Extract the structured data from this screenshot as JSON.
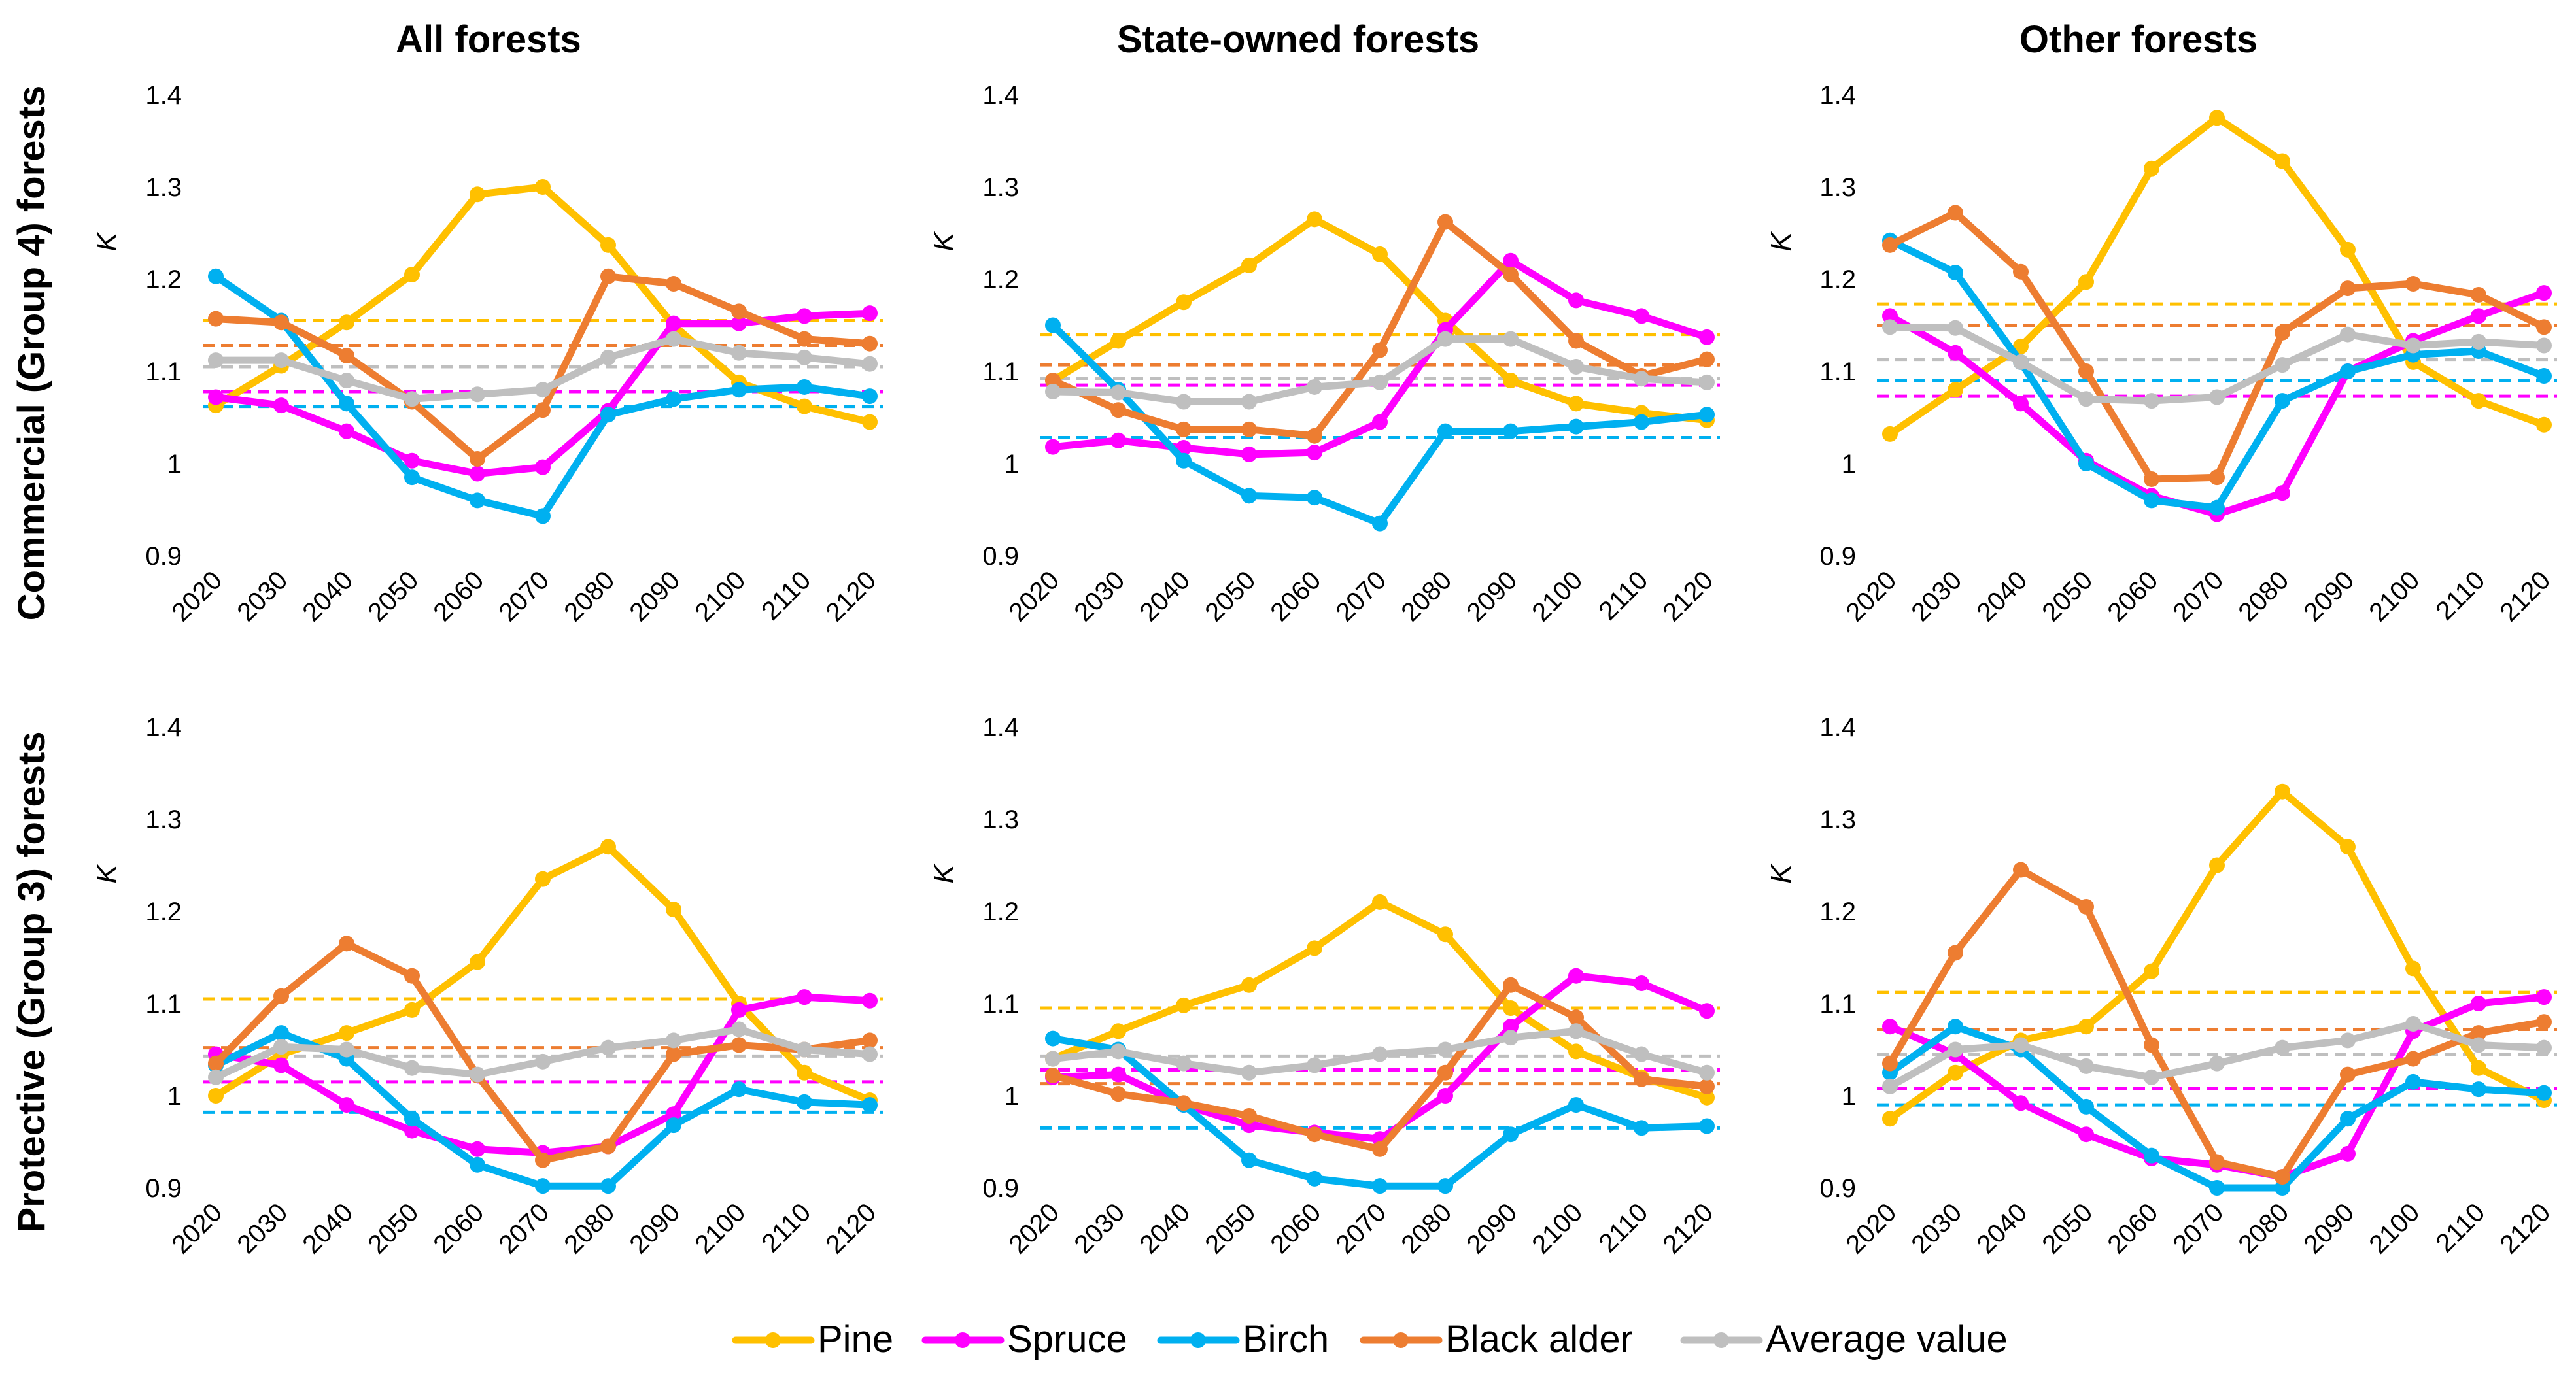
{
  "colors": {
    "Pine": "#FFC000",
    "Spruce": "#FF00FF",
    "Birch": "#00B0F0",
    "Black alder": "#ED7D31",
    "Average value": "#BFBFBF"
  },
  "column_titles": [
    "All forests",
    "State-owned forests",
    "Other forests"
  ],
  "row_labels": [
    "Commercial (Group 4) forests",
    "Protective (Group 3) forests"
  ],
  "legend": [
    "Pine",
    "Spruce",
    "Birch",
    "Black alder",
    "Average value"
  ],
  "chart_data": [
    {
      "type": "line",
      "row": 0,
      "col": 0,
      "title": "All forests",
      "ylabel": "K",
      "ylim": [
        0.9,
        1.4
      ],
      "yticks": [
        "0.9",
        "1",
        "1.1",
        "1.2",
        "1.3",
        "1.4"
      ],
      "x": [
        "2020",
        "2030",
        "2040",
        "2050",
        "2060",
        "2070",
        "2080",
        "2090",
        "2100",
        "2110",
        "2120"
      ],
      "series": [
        {
          "name": "Pine",
          "values": [
            1.063,
            1.106,
            1.153,
            1.205,
            1.292,
            1.3,
            1.237,
            1.15,
            1.088,
            1.062,
            1.045
          ],
          "mean": 1.155
        },
        {
          "name": "Spruce",
          "values": [
            1.072,
            1.063,
            1.035,
            1.003,
            0.989,
            0.996,
            1.057,
            1.152,
            1.152,
            1.16,
            1.163
          ],
          "mean": 1.078
        },
        {
          "name": "Birch",
          "values": [
            1.203,
            1.155,
            1.065,
            0.985,
            0.96,
            0.943,
            1.053,
            1.07,
            1.08,
            1.083,
            1.073
          ],
          "mean": 1.062
        },
        {
          "name": "Black alder",
          "values": [
            1.157,
            1.153,
            1.117,
            1.067,
            1.005,
            1.058,
            1.203,
            1.195,
            1.165,
            1.135,
            1.13
          ],
          "mean": 1.128
        },
        {
          "name": "Average value",
          "values": [
            1.112,
            1.112,
            1.09,
            1.07,
            1.075,
            1.08,
            1.115,
            1.135,
            1.12,
            1.115,
            1.108
          ],
          "mean": 1.105
        }
      ]
    },
    {
      "type": "line",
      "row": 0,
      "col": 1,
      "title": "State-owned forests",
      "ylabel": "K",
      "ylim": [
        0.9,
        1.4
      ],
      "yticks": [
        "0.9",
        "1",
        "1.1",
        "1.2",
        "1.3",
        "1.4"
      ],
      "x": [
        "2020",
        "2030",
        "2040",
        "2050",
        "2060",
        "2070",
        "2080",
        "2090",
        "2100",
        "2110",
        "2120"
      ],
      "series": [
        {
          "name": "Pine",
          "values": [
            1.09,
            1.133,
            1.175,
            1.215,
            1.265,
            1.227,
            1.155,
            1.09,
            1.065,
            1.055,
            1.047
          ],
          "mean": 1.14
        },
        {
          "name": "Spruce",
          "values": [
            1.018,
            1.025,
            1.017,
            1.01,
            1.012,
            1.045,
            1.145,
            1.22,
            1.177,
            1.16,
            1.137
          ],
          "mean": 1.085
        },
        {
          "name": "Birch",
          "values": [
            1.15,
            1.08,
            1.003,
            0.965,
            0.963,
            0.935,
            1.035,
            1.035,
            1.04,
            1.045,
            1.053
          ],
          "mean": 1.028
        },
        {
          "name": "Black alder",
          "values": [
            1.09,
            1.058,
            1.037,
            1.037,
            1.03,
            1.123,
            1.262,
            1.205,
            1.133,
            1.095,
            1.113
          ],
          "mean": 1.107
        },
        {
          "name": "Average value",
          "values": [
            1.078,
            1.077,
            1.067,
            1.067,
            1.083,
            1.088,
            1.135,
            1.135,
            1.105,
            1.092,
            1.088
          ],
          "mean": 1.092
        }
      ]
    },
    {
      "type": "line",
      "row": 0,
      "col": 2,
      "title": "Other forests",
      "ylabel": "K",
      "ylim": [
        0.9,
        1.4
      ],
      "yticks": [
        "0.9",
        "1",
        "1.1",
        "1.2",
        "1.3",
        "1.4"
      ],
      "x": [
        "2020",
        "2030",
        "2040",
        "2050",
        "2060",
        "2070",
        "2080",
        "2090",
        "2100",
        "2110",
        "2120"
      ],
      "series": [
        {
          "name": "Pine",
          "values": [
            1.032,
            1.08,
            1.127,
            1.197,
            1.32,
            1.375,
            1.328,
            1.232,
            1.11,
            1.068,
            1.042
          ],
          "mean": 1.173
        },
        {
          "name": "Spruce",
          "values": [
            1.16,
            1.12,
            1.065,
            1.003,
            0.965,
            0.945,
            0.968,
            1.1,
            1.133,
            1.16,
            1.185
          ],
          "mean": 1.073
        },
        {
          "name": "Birch",
          "values": [
            1.242,
            1.207,
            1.11,
            1.0,
            0.96,
            0.952,
            1.068,
            1.1,
            1.118,
            1.122,
            1.095
          ],
          "mean": 1.09
        },
        {
          "name": "Black alder",
          "values": [
            1.237,
            1.272,
            1.208,
            1.1,
            0.983,
            0.985,
            1.142,
            1.19,
            1.195,
            1.183,
            1.148
          ],
          "mean": 1.15
        },
        {
          "name": "Average value",
          "values": [
            1.148,
            1.147,
            1.11,
            1.07,
            1.068,
            1.072,
            1.107,
            1.14,
            1.128,
            1.132,
            1.128
          ],
          "mean": 1.113
        }
      ]
    },
    {
      "type": "line",
      "row": 1,
      "col": 0,
      "title": "",
      "ylabel": "K",
      "ylim": [
        0.9,
        1.4
      ],
      "yticks": [
        "0.9",
        "1",
        "1.1",
        "1.2",
        "1.3",
        "1.4"
      ],
      "x": [
        "2020",
        "2030",
        "2040",
        "2050",
        "2060",
        "2070",
        "2080",
        "2090",
        "2100",
        "2110",
        "2120"
      ],
      "series": [
        {
          "name": "Pine",
          "values": [
            1.0,
            1.045,
            1.068,
            1.093,
            1.145,
            1.235,
            1.27,
            1.202,
            1.1,
            1.025,
            0.995
          ],
          "mean": 1.105
        },
        {
          "name": "Spruce",
          "values": [
            1.045,
            1.033,
            0.99,
            0.962,
            0.942,
            0.938,
            0.945,
            0.98,
            1.093,
            1.107,
            1.103
          ],
          "mean": 1.015
        },
        {
          "name": "Birch",
          "values": [
            1.033,
            1.068,
            1.04,
            0.975,
            0.925,
            0.902,
            0.902,
            0.968,
            1.007,
            0.993,
            0.99
          ],
          "mean": 0.982
        },
        {
          "name": "Black alder",
          "values": [
            1.035,
            1.108,
            1.165,
            1.13,
            1.022,
            0.93,
            0.945,
            1.045,
            1.055,
            1.05,
            1.06
          ],
          "mean": 1.052
        },
        {
          "name": "Average value",
          "values": [
            1.02,
            1.053,
            1.05,
            1.03,
            1.023,
            1.037,
            1.052,
            1.06,
            1.072,
            1.05,
            1.045
          ],
          "mean": 1.043
        }
      ]
    },
    {
      "type": "line",
      "row": 1,
      "col": 1,
      "title": "",
      "ylabel": "K",
      "ylim": [
        0.9,
        1.4
      ],
      "yticks": [
        "0.9",
        "1",
        "1.1",
        "1.2",
        "1.3",
        "1.4"
      ],
      "x": [
        "2020",
        "2030",
        "2040",
        "2050",
        "2060",
        "2070",
        "2080",
        "2090",
        "2100",
        "2110",
        "2120"
      ],
      "series": [
        {
          "name": "Pine",
          "values": [
            1.04,
            1.07,
            1.098,
            1.12,
            1.16,
            1.21,
            1.175,
            1.095,
            1.048,
            1.02,
            0.998
          ],
          "mean": 1.095
        },
        {
          "name": "Spruce",
          "values": [
            1.02,
            1.023,
            0.99,
            0.968,
            0.96,
            0.953,
            1.0,
            1.075,
            1.13,
            1.122,
            1.092
          ],
          "mean": 1.028
        },
        {
          "name": "Birch",
          "values": [
            1.062,
            1.05,
            0.99,
            0.93,
            0.91,
            0.902,
            0.902,
            0.958,
            0.99,
            0.965,
            0.967
          ],
          "mean": 0.965
        },
        {
          "name": "Black alder",
          "values": [
            1.022,
            1.002,
            0.992,
            0.978,
            0.958,
            0.942,
            1.025,
            1.12,
            1.085,
            1.018,
            1.01
          ],
          "mean": 1.013
        },
        {
          "name": "Average value",
          "values": [
            1.04,
            1.048,
            1.035,
            1.025,
            1.033,
            1.045,
            1.05,
            1.063,
            1.07,
            1.045,
            1.025
          ],
          "mean": 1.043
        }
      ]
    },
    {
      "type": "line",
      "row": 1,
      "col": 2,
      "title": "",
      "ylabel": "K",
      "ylim": [
        0.9,
        1.4
      ],
      "yticks": [
        "0.9",
        "1",
        "1.1",
        "1.2",
        "1.3",
        "1.4"
      ],
      "x": [
        "2020",
        "2030",
        "2040",
        "2050",
        "2060",
        "2070",
        "2080",
        "2090",
        "2100",
        "2110",
        "2120"
      ],
      "series": [
        {
          "name": "Pine",
          "values": [
            0.975,
            1.025,
            1.06,
            1.075,
            1.135,
            1.25,
            1.33,
            1.27,
            1.138,
            1.03,
            0.995
          ],
          "mean": 1.112
        },
        {
          "name": "Spruce",
          "values": [
            1.075,
            1.045,
            0.992,
            0.958,
            0.932,
            0.925,
            0.912,
            0.937,
            1.07,
            1.1,
            1.107
          ],
          "mean": 1.008
        },
        {
          "name": "Birch",
          "values": [
            1.025,
            1.075,
            1.05,
            0.988,
            0.935,
            0.9,
            0.9,
            0.975,
            1.015,
            1.007,
            1.003
          ],
          "mean": 0.99
        },
        {
          "name": "Black alder",
          "values": [
            1.035,
            1.155,
            1.245,
            1.205,
            1.055,
            0.928,
            0.912,
            1.023,
            1.04,
            1.068,
            1.08
          ],
          "mean": 1.072
        },
        {
          "name": "Average value",
          "values": [
            1.01,
            1.05,
            1.055,
            1.032,
            1.02,
            1.035,
            1.052,
            1.06,
            1.078,
            1.055,
            1.052
          ],
          "mean": 1.045
        }
      ]
    }
  ]
}
